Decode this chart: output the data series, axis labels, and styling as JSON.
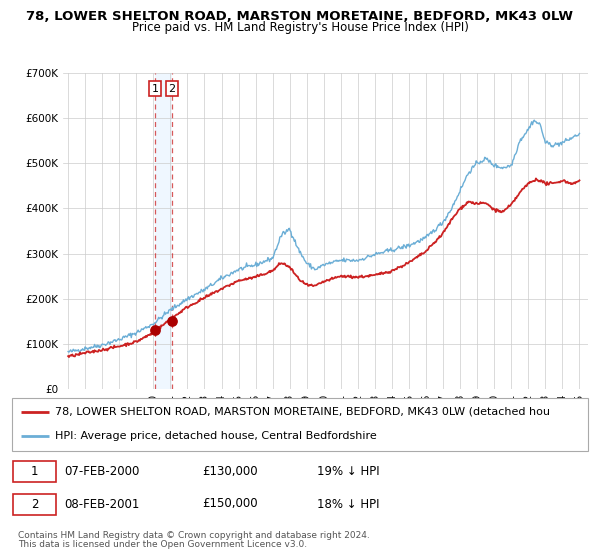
{
  "title": "78, LOWER SHELTON ROAD, MARSTON MORETAINE, BEDFORD, MK43 0LW",
  "subtitle": "Price paid vs. HM Land Registry's House Price Index (HPI)",
  "ylim": [
    0,
    700000
  ],
  "xlim_start": 1994.7,
  "xlim_end": 2025.5,
  "yticks": [
    0,
    100000,
    200000,
    300000,
    400000,
    500000,
    600000,
    700000
  ],
  "ytick_labels": [
    "£0",
    "£100K",
    "£200K",
    "£300K",
    "£400K",
    "£500K",
    "£600K",
    "£700K"
  ],
  "xticks": [
    1995,
    1996,
    1997,
    1998,
    1999,
    2000,
    2001,
    2002,
    2003,
    2004,
    2005,
    2006,
    2007,
    2008,
    2009,
    2010,
    2011,
    2012,
    2013,
    2014,
    2015,
    2016,
    2017,
    2018,
    2019,
    2020,
    2021,
    2022,
    2023,
    2024,
    2025
  ],
  "hpi_color": "#6baed6",
  "price_color": "#cc2222",
  "dot_color": "#aa0000",
  "shade_color": "#ddeeff",
  "shade_alpha": 0.45,
  "t1_year": 2000.1,
  "t2_year": 2001.1,
  "t1_price": 130000,
  "t2_price": 150000,
  "transaction1_label": "1",
  "transaction1_date": "07-FEB-2000",
  "transaction1_price_str": "£130,000",
  "transaction1_pct": "19% ↓ HPI",
  "transaction2_label": "2",
  "transaction2_date": "08-FEB-2001",
  "transaction2_price_str": "£150,000",
  "transaction2_pct": "18% ↓ HPI",
  "legend_line1": "78, LOWER SHELTON ROAD, MARSTON MORETAINE, BEDFORD, MK43 0LW (detached hou",
  "legend_line2": "HPI: Average price, detached house, Central Bedfordshire",
  "footnote1": "Contains HM Land Registry data © Crown copyright and database right 2024.",
  "footnote2": "This data is licensed under the Open Government Licence v3.0.",
  "title_fontsize": 9.5,
  "subtitle_fontsize": 8.5,
  "axis_fontsize": 7.5,
  "legend_fontsize": 8,
  "table_fontsize": 8.5,
  "footnote_fontsize": 6.5,
  "background_color": "#ffffff",
  "grid_color": "#cccccc"
}
